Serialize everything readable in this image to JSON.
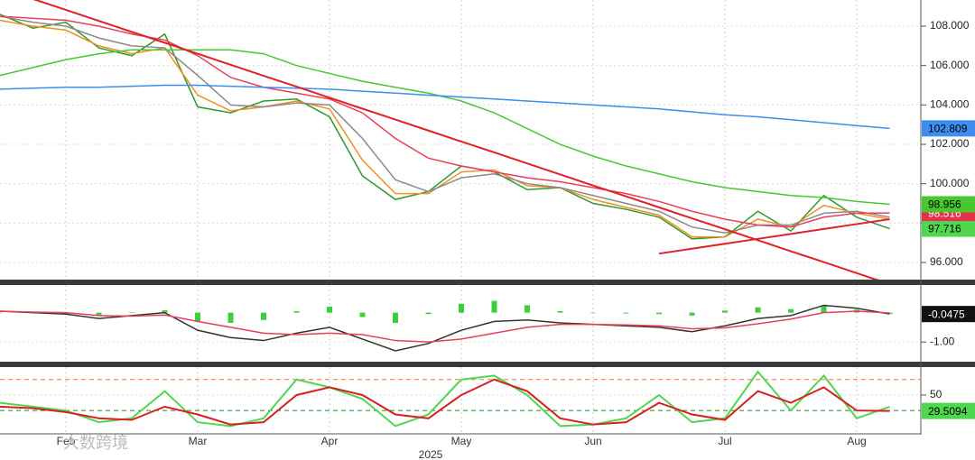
{
  "chart_data": [
    {
      "type": "line",
      "ylim": [
        95.13,
        109.33
      ],
      "yticks": [
        {
          "value": 96,
          "label": "96.000"
        },
        {
          "value": 98,
          "label": "98.000"
        },
        {
          "value": 100,
          "label": "100.000"
        },
        {
          "value": 102,
          "label": "102.000"
        },
        {
          "value": 104,
          "label": "104.000"
        },
        {
          "value": 106,
          "label": "106.000"
        },
        {
          "value": 108,
          "label": "108.000"
        }
      ],
      "series": [
        {
          "color": "#2e9a2e",
          "width": 1.5,
          "values": [
            108.6,
            107.9,
            108.2,
            106.9,
            106.5,
            107.6,
            103.9,
            103.6,
            104.2,
            104.3,
            103.4,
            100.4,
            99.2,
            99.6,
            100.9,
            100.6,
            99.7,
            99.8,
            99.0,
            98.7,
            98.3,
            97.2,
            97.3,
            98.6,
            97.6,
            99.4,
            98.3,
            97.716
          ],
          "end_label": true,
          "label_color": "#4fd84f",
          "label_text": "#000"
        },
        {
          "color": "#f0901e",
          "width": 1.5,
          "values": [
            108.3,
            108.0,
            107.8,
            107.0,
            106.6,
            106.9,
            104.5,
            103.7,
            103.9,
            104.2,
            103.8,
            101.2,
            99.5,
            99.5,
            100.6,
            100.7,
            99.9,
            99.8,
            99.2,
            98.8,
            98.4,
            97.3,
            97.3,
            98.2,
            97.8,
            98.9,
            98.5,
            98.2
          ]
        },
        {
          "color": "#8a8a8a",
          "width": 1.5,
          "values": [
            108.5,
            108.2,
            108.0,
            107.4,
            107.0,
            106.9,
            105.5,
            104.0,
            103.9,
            104.1,
            104.0,
            102.3,
            100.2,
            99.6,
            100.3,
            100.5,
            100.0,
            99.8,
            99.4,
            99.0,
            98.6,
            97.8,
            97.5,
            97.9,
            97.9,
            98.5,
            98.6,
            98.3
          ]
        },
        {
          "color": "#e8405a",
          "width": 1.5,
          "values": [
            108.5,
            108.4,
            108.3,
            108.0,
            107.6,
            107.3,
            106.5,
            105.4,
            104.9,
            104.6,
            104.3,
            103.6,
            102.3,
            101.3,
            100.9,
            100.6,
            100.3,
            100.1,
            99.8,
            99.5,
            99.1,
            98.6,
            98.2,
            97.9,
            97.8,
            98.3,
            98.5,
            98.516
          ],
          "end_label": true,
          "label_color": "#e8304a",
          "label_text": "#fff"
        },
        {
          "color": "#48c830",
          "width": 1.5,
          "values": [
            105.5,
            105.9,
            106.3,
            106.6,
            106.8,
            106.8,
            106.8,
            106.8,
            106.6,
            106.0,
            105.6,
            105.2,
            104.9,
            104.6,
            104.2,
            103.6,
            102.8,
            102.0,
            101.4,
            100.9,
            100.5,
            100.1,
            99.8,
            99.6,
            99.4,
            99.3,
            99.1,
            98.956
          ],
          "end_label": true,
          "label_color": "#48c830",
          "label_text": "#000"
        },
        {
          "color": "#3d8ef0",
          "width": 1.5,
          "values": [
            104.8,
            104.85,
            104.9,
            104.9,
            104.95,
            105.0,
            105.0,
            104.95,
            104.9,
            104.85,
            104.8,
            104.7,
            104.6,
            104.5,
            104.4,
            104.3,
            104.2,
            104.1,
            104.0,
            103.9,
            103.8,
            103.65,
            103.5,
            103.4,
            103.25,
            103.1,
            102.95,
            102.809
          ],
          "end_label": true,
          "label_color": "#3d8ef0",
          "label_text": "#000"
        },
        {
          "color": "#e0202a",
          "width": 2,
          "values": [
            109.94,
            109.38,
            108.83,
            108.27,
            107.71,
            107.16,
            106.6,
            106.04,
            105.48,
            104.93,
            104.37,
            103.81,
            103.26,
            102.7,
            102.14,
            101.59,
            101.03,
            100.47,
            99.91,
            99.36,
            98.8,
            98.24,
            97.69,
            97.13,
            96.57,
            96.02,
            95.46,
            94.9
          ]
        },
        {
          "color": "#e0202a",
          "width": 2,
          "values": [
            null,
            null,
            null,
            null,
            null,
            null,
            null,
            null,
            null,
            null,
            null,
            null,
            null,
            null,
            null,
            null,
            null,
            null,
            null,
            null,
            96.45,
            96.7,
            96.95,
            97.2,
            97.45,
            97.7,
            97.95,
            98.2
          ]
        }
      ]
    },
    {
      "type": "line",
      "ylim": [
        -1.67,
        0.94
      ],
      "yticks": [
        {
          "value": -1,
          "label": "-1.00"
        }
      ],
      "series": [
        {
          "type": "bar",
          "color": "#3ad03a",
          "values": [
            0,
            -0.02,
            -0.05,
            -0.1,
            0.02,
            0.08,
            -0.3,
            -0.35,
            -0.25,
            0.05,
            0.2,
            -0.15,
            -0.35,
            -0.05,
            0.3,
            0.4,
            0.25,
            0.05,
            0,
            -0.03,
            -0.05,
            -0.1,
            0.07,
            0.18,
            0.12,
            0.25,
            0.1,
            -0.04
          ]
        },
        {
          "color": "#333333",
          "width": 1.5,
          "values": [
            0.05,
            0.0,
            -0.05,
            -0.2,
            -0.1,
            0.0,
            -0.6,
            -0.85,
            -0.95,
            -0.7,
            -0.5,
            -0.9,
            -1.3,
            -1.05,
            -0.6,
            -0.3,
            -0.25,
            -0.35,
            -0.4,
            -0.45,
            -0.5,
            -0.65,
            -0.45,
            -0.2,
            -0.1,
            0.25,
            0.15,
            -0.0475
          ],
          "end_label": true,
          "label_color": "#111",
          "label_text": "#fff"
        },
        {
          "color": "#e8405a",
          "width": 1.5,
          "values": [
            0.05,
            0.02,
            0.0,
            -0.1,
            -0.12,
            -0.08,
            -0.3,
            -0.5,
            -0.7,
            -0.75,
            -0.7,
            -0.75,
            -0.95,
            -1.0,
            -0.9,
            -0.7,
            -0.5,
            -0.4,
            -0.4,
            -0.42,
            -0.45,
            -0.55,
            -0.52,
            -0.38,
            -0.22,
            0.0,
            0.05,
            -0.01
          ]
        }
      ]
    },
    {
      "type": "line",
      "ylim": [
        0,
        86
      ],
      "yticks": [
        50
      ],
      "levels": [
        {
          "value": 70,
          "color": "#f07030"
        },
        {
          "value": 30,
          "color": "#208a20"
        }
      ],
      "categories": [
        null,
        null,
        "Feb",
        null,
        null,
        null,
        "Mar",
        null,
        null,
        null,
        "Apr",
        null,
        null,
        null,
        "May",
        null,
        null,
        null,
        "Jun",
        null,
        null,
        null,
        "Jul",
        null,
        null,
        null,
        "Aug",
        null
      ],
      "year": "2025",
      "series": [
        {
          "color": "#4fd84f",
          "width": 2,
          "values": [
            40,
            35,
            30,
            15,
            20,
            55,
            15,
            10,
            20,
            70,
            60,
            45,
            10,
            25,
            70,
            75,
            50,
            10,
            12,
            20,
            50,
            15,
            20,
            80,
            30,
            75,
            20,
            35
          ]
        },
        {
          "color": "#d82020",
          "width": 2,
          "values": [
            35,
            33,
            28,
            20,
            18,
            35,
            25,
            12,
            15,
            50,
            60,
            50,
            25,
            20,
            50,
            70,
            55,
            20,
            12,
            15,
            40,
            25,
            18,
            55,
            40,
            60,
            30,
            29.5094
          ],
          "end_label": true,
          "label_color": "#4fd84f",
          "label_text": "#000"
        }
      ]
    }
  ],
  "watermark": "大数跨境"
}
